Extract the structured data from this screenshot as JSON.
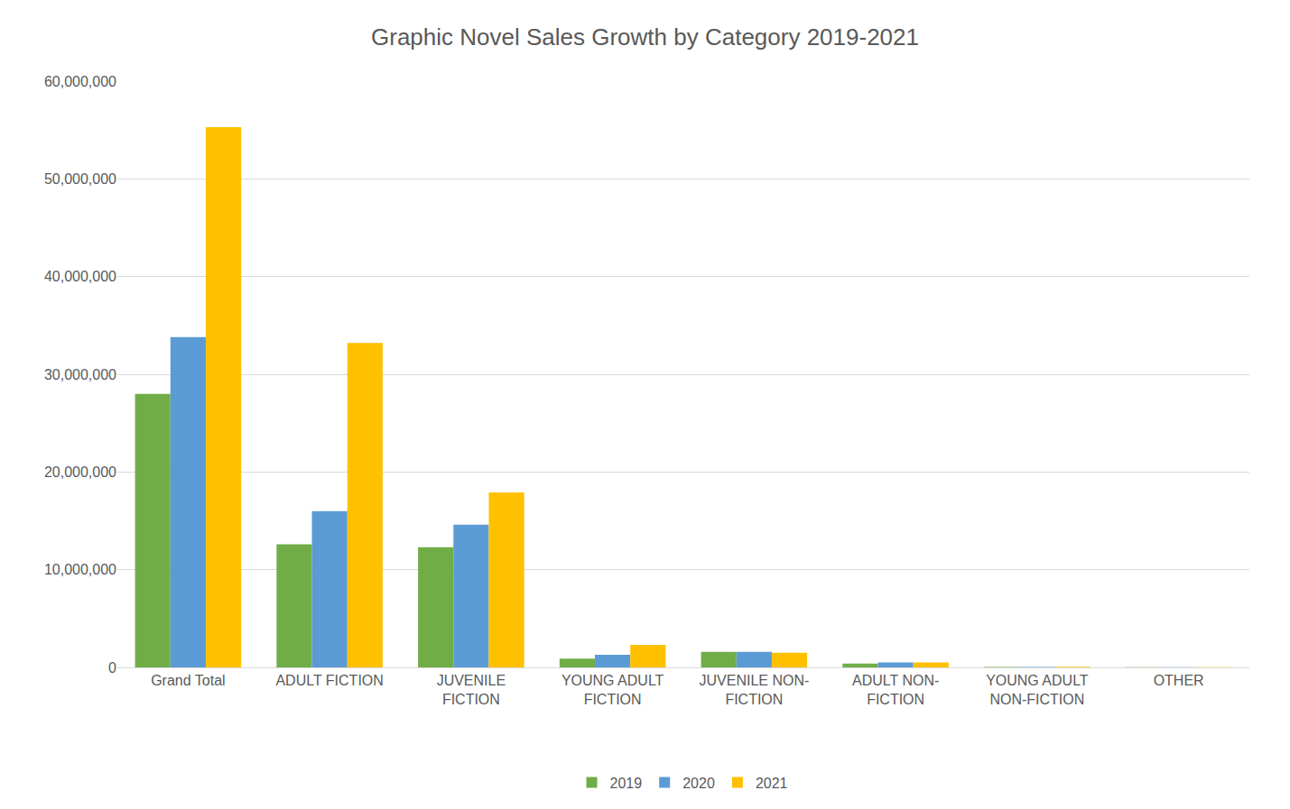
{
  "chart_data": {
    "type": "bar",
    "title": "Graphic Novel Sales Growth by Category 2019-2021",
    "categories": [
      "Grand Total",
      "ADULT FICTION",
      "JUVENILE FICTION",
      "YOUNG ADULT FICTION",
      "JUVENILE NON-FICTION",
      "ADULT NON-FICTION",
      "YOUNG ADULT NON-FICTION",
      "OTHER"
    ],
    "series": [
      {
        "name": "2019",
        "color": "#70ad47",
        "values": [
          28000000,
          12600000,
          12300000,
          900000,
          1600000,
          400000,
          50000,
          30000
        ]
      },
      {
        "name": "2020",
        "color": "#5b9bd5",
        "values": [
          33800000,
          16000000,
          14600000,
          1300000,
          1600000,
          500000,
          50000,
          30000
        ]
      },
      {
        "name": "2021",
        "color": "#ffc000",
        "values": [
          55300000,
          33200000,
          17900000,
          2300000,
          1500000,
          500000,
          80000,
          30000
        ]
      }
    ],
    "ylim": [
      0,
      60000000
    ],
    "yticks": [
      0,
      {
        "value": 10000000,
        "label": "10,000,000"
      },
      {
        "value": 20000000,
        "label": "20,000,000"
      },
      {
        "value": 30000000,
        "label": "30,000,000"
      },
      {
        "value": 40000000,
        "label": "40,000,000"
      },
      {
        "value": 50000000,
        "label": "50,000,000"
      },
      {
        "value": 60000000,
        "label": "60,000,000"
      }
    ],
    "grid": true,
    "legend": "bottom"
  }
}
